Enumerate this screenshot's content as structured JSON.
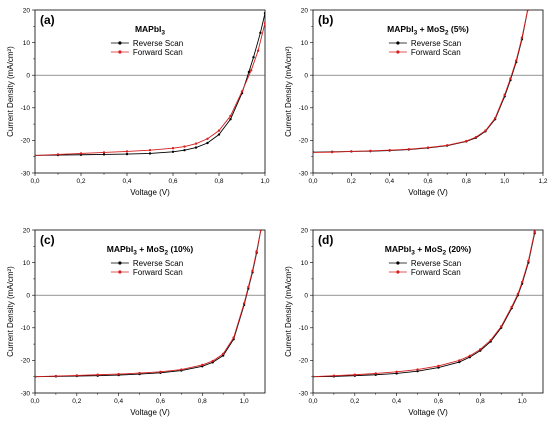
{
  "colors": {
    "reverse": "#000000",
    "forward": "#d62020",
    "zero_line": "#555555"
  },
  "legend": [
    "Reverse Scan",
    "Forward Scan"
  ],
  "chart_data": [
    {
      "type": "line",
      "panel_label": "(a)",
      "title": "MAPbI",
      "title_sub": "3",
      "title_suffix": "",
      "xlabel": "Voltage (V)",
      "ylabel": "Current Density (mA/cm²)",
      "xlim": [
        0,
        1.0
      ],
      "ylim": [
        -30,
        20
      ],
      "xticks": [
        0.0,
        0.2,
        0.4,
        0.6,
        0.8,
        1.0
      ],
      "xtick_labels": [
        "0,0",
        "0,2",
        "0,4",
        "0,6",
        "0,8",
        "1,0"
      ],
      "yticks": [
        -30,
        -20,
        -10,
        0,
        10,
        20
      ],
      "legend_position": "top-center",
      "series": [
        {
          "name": "Reverse Scan",
          "x": [
            0,
            0.1,
            0.2,
            0.3,
            0.4,
            0.5,
            0.6,
            0.65,
            0.7,
            0.75,
            0.8,
            0.85,
            0.9,
            0.93,
            0.95,
            0.98,
            1.0
          ],
          "y": [
            -24.6,
            -24.5,
            -24.4,
            -24.3,
            -24.2,
            -24.0,
            -23.5,
            -23.0,
            -22.2,
            -20.8,
            -18.2,
            -13.5,
            -5.5,
            1.0,
            5.5,
            13.0,
            19.0
          ]
        },
        {
          "name": "Forward Scan",
          "x": [
            0,
            0.1,
            0.2,
            0.3,
            0.4,
            0.5,
            0.6,
            0.65,
            0.7,
            0.75,
            0.8,
            0.85,
            0.9,
            0.94,
            0.97,
            1.0
          ],
          "y": [
            -24.6,
            -24.3,
            -24.0,
            -23.7,
            -23.4,
            -23.0,
            -22.4,
            -21.9,
            -21.0,
            -19.5,
            -17.0,
            -12.5,
            -5.0,
            1.5,
            7.5,
            16.0
          ]
        }
      ]
    },
    {
      "type": "line",
      "panel_label": "(b)",
      "title": "MAPbI",
      "title_sub": "3",
      "title_suffix": " + MoS",
      "title_sub2": "2",
      "title_suffix2": " (5%)",
      "xlabel": "Voltage (V)",
      "ylabel": "Current Density (mA/cm²)",
      "xlim": [
        0,
        1.2
      ],
      "ylim": [
        -30,
        20
      ],
      "xticks": [
        0.0,
        0.2,
        0.4,
        0.6,
        0.8,
        1.0,
        1.2
      ],
      "xtick_labels": [
        "0,0",
        "0,2",
        "0,4",
        "0,6",
        "0,8",
        "1,0",
        "1,2"
      ],
      "yticks": [
        -30,
        -20,
        -10,
        0,
        10,
        20
      ],
      "legend_position": "top-center",
      "series": [
        {
          "name": "Reverse Scan",
          "x": [
            0,
            0.1,
            0.2,
            0.3,
            0.4,
            0.5,
            0.6,
            0.7,
            0.8,
            0.85,
            0.9,
            0.95,
            1.0,
            1.03,
            1.06,
            1.09,
            1.12
          ],
          "y": [
            -23.6,
            -23.5,
            -23.4,
            -23.3,
            -23.1,
            -22.8,
            -22.3,
            -21.6,
            -20.3,
            -19.2,
            -17.2,
            -13.5,
            -6.5,
            -1.5,
            4.0,
            11.0,
            20.0
          ]
        },
        {
          "name": "Forward Scan",
          "x": [
            0,
            0.1,
            0.2,
            0.3,
            0.4,
            0.5,
            0.6,
            0.7,
            0.8,
            0.85,
            0.9,
            0.95,
            1.0,
            1.03,
            1.06,
            1.09,
            1.12
          ],
          "y": [
            -23.7,
            -23.6,
            -23.4,
            -23.2,
            -23.0,
            -22.7,
            -22.2,
            -21.5,
            -20.2,
            -19.0,
            -17.0,
            -13.2,
            -6.0,
            -1.0,
            4.5,
            11.5,
            20.0
          ]
        }
      ]
    },
    {
      "type": "line",
      "panel_label": "(c)",
      "title": "MAPbI",
      "title_sub": "3",
      "title_suffix": " + MoS",
      "title_sub2": "2",
      "title_suffix2": " (10%)",
      "xlabel": "Voltage (V)",
      "ylabel": "Current Density (mA/cm²)",
      "xlim": [
        0,
        1.1
      ],
      "ylim": [
        -30,
        20
      ],
      "xticks": [
        0.0,
        0.2,
        0.4,
        0.6,
        0.8,
        1.0
      ],
      "xtick_labels": [
        "0,0",
        "0,2",
        "0,4",
        "0,6",
        "0,8",
        "1,0"
      ],
      "yticks": [
        -30,
        -20,
        -10,
        0,
        10,
        20
      ],
      "legend_position": "top-center",
      "series": [
        {
          "name": "Reverse Scan",
          "x": [
            0,
            0.1,
            0.2,
            0.3,
            0.4,
            0.5,
            0.6,
            0.7,
            0.8,
            0.85,
            0.9,
            0.95,
            1.0,
            1.02,
            1.04,
            1.06,
            1.08
          ],
          "y": [
            -25.0,
            -24.9,
            -24.8,
            -24.7,
            -24.5,
            -24.2,
            -23.8,
            -23.1,
            -21.8,
            -20.6,
            -18.5,
            -13.5,
            -3.0,
            2.0,
            7.0,
            13.0,
            20.0
          ]
        },
        {
          "name": "Forward Scan",
          "x": [
            0,
            0.1,
            0.2,
            0.3,
            0.4,
            0.5,
            0.6,
            0.7,
            0.8,
            0.85,
            0.9,
            0.95,
            1.0,
            1.02,
            1.04,
            1.06,
            1.08
          ],
          "y": [
            -25.0,
            -24.8,
            -24.6,
            -24.4,
            -24.2,
            -23.9,
            -23.5,
            -22.8,
            -21.4,
            -20.2,
            -18.0,
            -13.0,
            -2.5,
            2.5,
            7.5,
            13.5,
            20.0
          ]
        }
      ]
    },
    {
      "type": "line",
      "panel_label": "(d)",
      "title": "MAPbI",
      "title_sub": "3",
      "title_suffix": " + MoS",
      "title_sub2": "2",
      "title_suffix2": " (20%)",
      "xlabel": "Voltage (V)",
      "ylabel": "Current Density (mA/cm²)",
      "xlim": [
        0,
        1.1
      ],
      "ylim": [
        -30,
        20
      ],
      "xticks": [
        0.0,
        0.2,
        0.4,
        0.6,
        0.8,
        1.0
      ],
      "xtick_labels": [
        "0,0",
        "0,2",
        "0,4",
        "0,6",
        "0,8",
        "1,0"
      ],
      "yticks": [
        -30,
        -20,
        -10,
        0,
        10,
        20
      ],
      "legend_position": "top-center",
      "series": [
        {
          "name": "Reverse Scan",
          "x": [
            0,
            0.1,
            0.2,
            0.3,
            0.4,
            0.5,
            0.6,
            0.7,
            0.75,
            0.8,
            0.85,
            0.9,
            0.95,
            0.98,
            1.0,
            1.03,
            1.06
          ],
          "y": [
            -25.0,
            -24.9,
            -24.7,
            -24.4,
            -24.0,
            -23.3,
            -22.2,
            -20.5,
            -19.0,
            -17.0,
            -14.2,
            -10.0,
            -4.0,
            0.0,
            3.5,
            10.0,
            19.0
          ]
        },
        {
          "name": "Forward Scan",
          "x": [
            0,
            0.1,
            0.2,
            0.3,
            0.4,
            0.5,
            0.6,
            0.7,
            0.75,
            0.8,
            0.85,
            0.9,
            0.95,
            0.98,
            1.0,
            1.03,
            1.06
          ],
          "y": [
            -25.0,
            -24.7,
            -24.4,
            -24.0,
            -23.5,
            -22.8,
            -21.7,
            -20.0,
            -18.6,
            -16.6,
            -13.8,
            -9.6,
            -3.6,
            0.4,
            4.0,
            10.5,
            19.5
          ]
        }
      ]
    }
  ]
}
